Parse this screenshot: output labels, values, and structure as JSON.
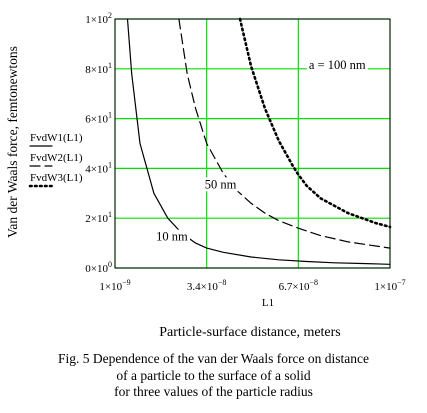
{
  "chart_data": {
    "type": "line",
    "title": "",
    "ylabel": "Van der Waals force, femtonewtons",
    "xlabel": "Particle-surface distance, meters",
    "xvar": "L1",
    "xlim": [
      1e-09,
      1e-07
    ],
    "ylim": [
      0,
      100
    ],
    "grid": true,
    "x_ticks": [
      {
        "value": 1e-09,
        "mant": "1×10",
        "exp": "−9"
      },
      {
        "value": 3.4e-08,
        "mant": "3.4×10",
        "exp": "−8"
      },
      {
        "value": 6.7e-08,
        "mant": "6.7×10",
        "exp": "−8"
      },
      {
        "value": 1e-07,
        "mant": "1×10",
        "exp": "−7"
      }
    ],
    "y_ticks": [
      {
        "value": 0,
        "mant": "0×10",
        "exp": "0"
      },
      {
        "value": 20,
        "mant": "2×10",
        "exp": "1"
      },
      {
        "value": 40,
        "mant": "4×10",
        "exp": "1"
      },
      {
        "value": 60,
        "mant": "6×10",
        "exp": "1"
      },
      {
        "value": 80,
        "mant": "8×10",
        "exp": "1"
      },
      {
        "value": 100,
        "mant": "1×10",
        "exp": "2"
      }
    ],
    "legend": [
      "FvdW1(L1)",
      "FvdW2(L1)",
      "FvdW3(L1)"
    ],
    "series": [
      {
        "name": "FvdW1(L1)",
        "style": "solid",
        "x": [
          5.5e-09,
          7e-09,
          1e-08,
          1.5e-08,
          2e-08,
          2.5e-08,
          3e-08,
          3.4e-08,
          4e-08,
          5e-08,
          6e-08,
          7e-08,
          8e-08,
          9e-08,
          1e-07
        ],
        "y": [
          100,
          78,
          50,
          30,
          20,
          14,
          10,
          8,
          6.3,
          4.4,
          3.3,
          2.6,
          2.1,
          1.8,
          1.5
        ]
      },
      {
        "name": "FvdW2(L1)",
        "style": "dashed",
        "x": [
          2.4e-08,
          2.7e-08,
          3e-08,
          3.4e-08,
          4e-08,
          4.5e-08,
          5e-08,
          5.5e-08,
          6e-08,
          6.7e-08,
          7.5e-08,
          8.5e-08,
          1e-07
        ],
        "y": [
          100,
          78,
          64,
          50,
          38,
          31,
          26,
          22,
          19,
          16,
          13,
          10.5,
          8
        ]
      },
      {
        "name": "FvdW3(L1)",
        "style": "dotted",
        "x": [
          4.6e-08,
          5e-08,
          5.5e-08,
          6e-08,
          6.5e-08,
          6.7e-08,
          7e-08,
          7.5e-08,
          8e-08,
          8.5e-08,
          9e-08,
          9.5e-08,
          1e-07
        ],
        "y": [
          100,
          81,
          64,
          51,
          41,
          37.5,
          33,
          28,
          25,
          22,
          20,
          18,
          16.5
        ]
      }
    ],
    "annotations": [
      {
        "text": "a = 100 nm",
        "x": 8.1e-08,
        "y": 80
      },
      {
        "text": "50 nm",
        "x": 3.9e-08,
        "y": 32
      },
      {
        "text": "10 nm",
        "x": 2.15e-08,
        "y": 11
      }
    ]
  },
  "caption": [
    "Fig. 5 Dependence of the van der Waals force on distance",
    "of a particle to the surface of a solid",
    "for three values of the particle radius"
  ]
}
